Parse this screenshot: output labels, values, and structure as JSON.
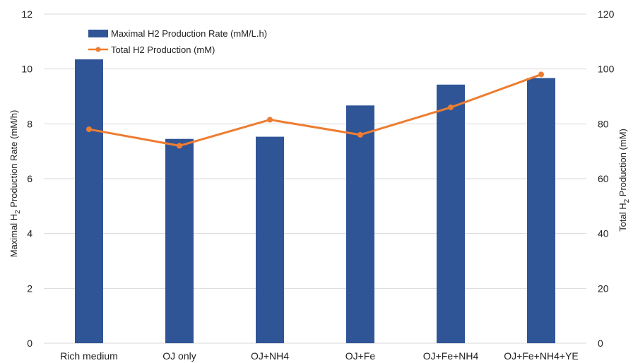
{
  "chart_data": {
    "type": "bar",
    "categories": [
      "Rich medium",
      "OJ only",
      "OJ+NH4",
      "OJ+Fe",
      "OJ+Fe+NH4",
      "OJ+Fe+NH4+YE"
    ],
    "series": [
      {
        "name": "Maximal H2 Production Rate (mM/L.h)",
        "type": "bar",
        "axis": "left",
        "color": "#2F5597",
        "values": [
          10.35,
          7.45,
          7.53,
          8.67,
          9.43,
          9.67
        ]
      },
      {
        "name": "Total H2  Production (mM)",
        "type": "line",
        "axis": "right",
        "color": "#ED7D31",
        "values": [
          78,
          72,
          81.5,
          76,
          86,
          98
        ]
      }
    ],
    "ylabel_left": {
      "prefix": "Maximal H",
      "subscript": "2",
      "suffix": " Production Rate (mM/h)"
    },
    "ylabel_right": {
      "prefix": "Total H",
      "subscript": "2",
      "suffix": " Production (mM)"
    },
    "ylim_left": [
      0,
      12
    ],
    "ylim_right": [
      0,
      120
    ],
    "yticks_left": [
      "0",
      "2",
      "4",
      "6",
      "8",
      "10",
      "12"
    ],
    "yticks_right": [
      "0",
      "20",
      "40",
      "60",
      "80",
      "100",
      "120"
    ],
    "grid": true,
    "legend_position": "top-left",
    "colors": {
      "bar": "#2F5597",
      "line": "#ED7D31",
      "grid": "#D9D9D9"
    }
  }
}
